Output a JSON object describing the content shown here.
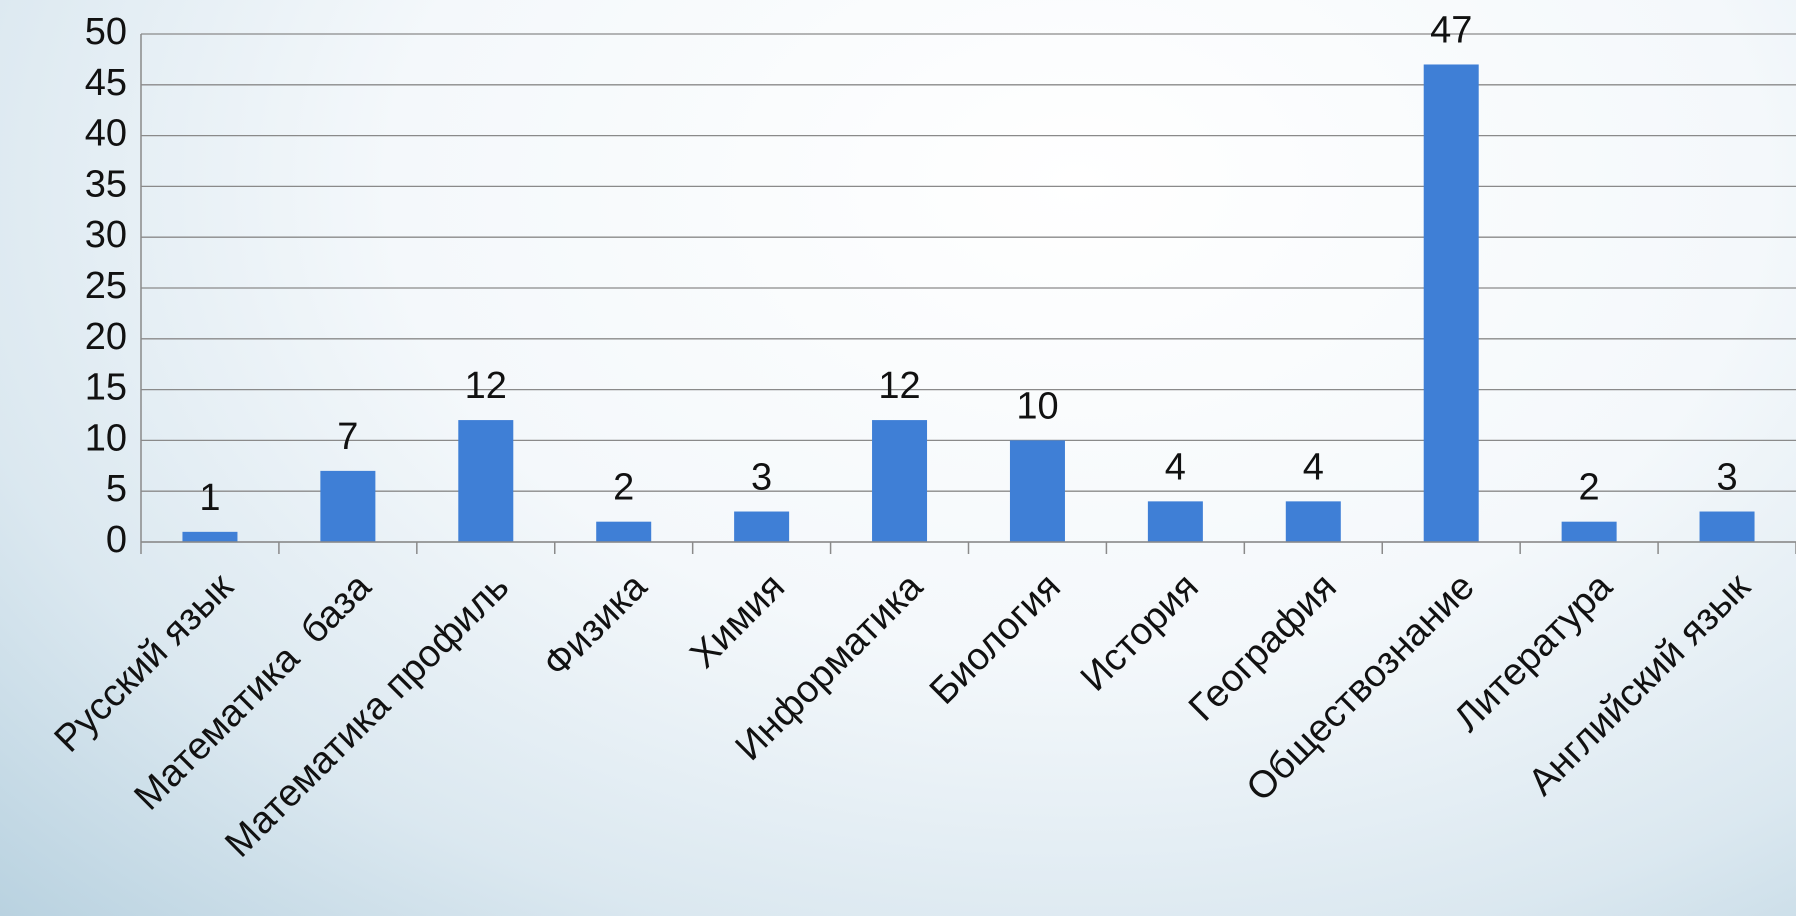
{
  "chart_data": {
    "type": "bar",
    "categories": [
      "Русский язык",
      "Математика  база",
      "Математика профиль",
      "Физика",
      "Химия",
      "Информатика",
      "Биология",
      "История",
      "География",
      "Обществознание",
      "Литература",
      "Английский язык"
    ],
    "values": [
      1,
      7,
      12,
      2,
      3,
      12,
      10,
      4,
      4,
      47,
      2,
      3
    ],
    "color": "#3f7fd6",
    "ylim": [
      0,
      50
    ],
    "yticks": [
      0,
      5,
      10,
      15,
      20,
      25,
      30,
      35,
      40,
      45,
      50
    ],
    "grid": true
  }
}
